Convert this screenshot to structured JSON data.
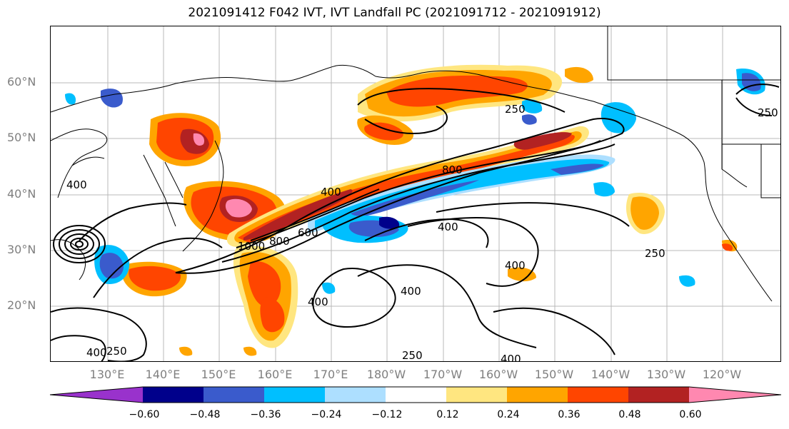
{
  "title": "2021091412 F042 IVT, IVT Landfall PC (2021091712 - 2021091912)",
  "lat_labels": [
    "60°N",
    "50°N",
    "40°N",
    "30°N",
    "20°N"
  ],
  "lon_labels": [
    "130°E",
    "140°E",
    "150°E",
    "160°E",
    "170°E",
    "180°W",
    "170°W",
    "160°W",
    "150°W",
    "140°W",
    "130°W",
    "120°W"
  ],
  "contour_labels": [
    "250",
    "250",
    "250",
    "400",
    "400",
    "400",
    "400",
    "400",
    "400",
    "400",
    "600",
    "800",
    "800",
    "1000",
    "250",
    "250",
    "400"
  ],
  "colorbar": {
    "colors": [
      "#9932CC",
      "#00008B",
      "#3A5BCC",
      "#00BFFF",
      "#ADDFFF",
      "#FFFFFF",
      "#FFE680",
      "#FFA500",
      "#FF4500",
      "#B22222",
      "#FF88B0"
    ],
    "ticks": [
      "−0.60",
      "−0.48",
      "−0.36",
      "−0.24",
      "−0.12",
      "0.12",
      "0.24",
      "0.36",
      "0.48",
      "0.60"
    ]
  }
}
